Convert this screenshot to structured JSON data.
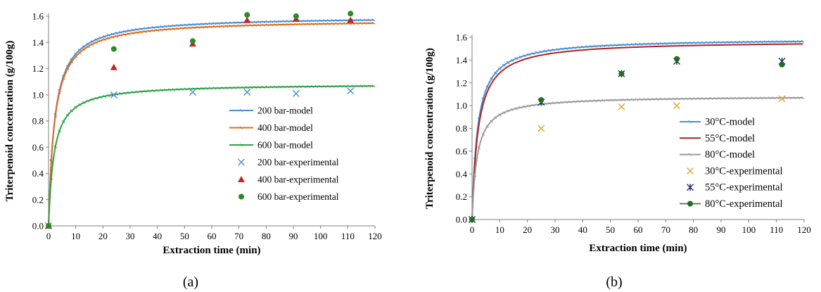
{
  "chart_data": [
    {
      "type": "line",
      "panel_label": "(a)",
      "xlabel": "Extraction time (min)",
      "ylabel": "Triterpenoid concentration (g/100g)",
      "xlim": [
        0,
        120
      ],
      "ylim": [
        0,
        1.6
      ],
      "x_ticks": [
        "0",
        "10",
        "20",
        "30",
        "40",
        "50",
        "60",
        "70",
        "80",
        "90",
        "100",
        "110",
        "120"
      ],
      "y_ticks": [
        "0.0",
        "0.2",
        "0.4",
        "0.6",
        "0.8",
        "1.0",
        "1.2",
        "1.4",
        "1.6"
      ],
      "grid": false,
      "legend_position": "bottom-right",
      "series": [
        {
          "name": "200 bar-model",
          "kind": "model",
          "color": "#4a8ed6",
          "marker": "tick",
          "asymptote": 1.6,
          "half_time": 2.2
        },
        {
          "name": "400 bar-model",
          "kind": "model",
          "color": "#e06c1e",
          "marker": "tick",
          "asymptote": 1.575,
          "half_time": 2.2
        },
        {
          "name": "600 bar-model",
          "kind": "model",
          "color": "#2ea043",
          "marker": "tick",
          "asymptote": 1.085,
          "half_time": 2.0
        },
        {
          "name": "200 bar-experimental",
          "kind": "experimental",
          "color": "#3f8fd0",
          "marker": "x",
          "points": [
            [
              0,
              0.0
            ],
            [
              24,
              1.0
            ],
            [
              53,
              1.02
            ],
            [
              73,
              1.02
            ],
            [
              91,
              1.01
            ],
            [
              111,
              1.03
            ]
          ]
        },
        {
          "name": "400 bar-experimental",
          "kind": "experimental",
          "color": "#c0281e",
          "marker": "triangle",
          "points": [
            [
              0,
              0.0
            ],
            [
              24,
              1.21
            ],
            [
              53,
              1.39
            ],
            [
              73,
              1.57
            ],
            [
              91,
              1.58
            ],
            [
              111,
              1.57
            ]
          ]
        },
        {
          "name": "600 bar-experimental",
          "kind": "experimental",
          "color": "#2a8a2a",
          "marker": "circle",
          "points": [
            [
              0,
              0.0
            ],
            [
              24,
              1.35
            ],
            [
              53,
              1.41
            ],
            [
              73,
              1.61
            ],
            [
              91,
              1.6
            ],
            [
              111,
              1.62
            ]
          ]
        }
      ]
    },
    {
      "type": "line",
      "panel_label": "(b)",
      "xlabel": "Extraction time (min)",
      "ylabel": "Triterpenoid concentration (g/100g)",
      "xlim": [
        0,
        120
      ],
      "ylim": [
        0,
        1.6
      ],
      "x_ticks": [
        "0",
        "10",
        "20",
        "30",
        "40",
        "50",
        "60",
        "70",
        "80",
        "90",
        "100",
        "110",
        "120"
      ],
      "y_ticks": [
        "0.0",
        "0.2",
        "0.4",
        "0.6",
        "0.8",
        "1.0",
        "1.2",
        "1.4",
        "1.6"
      ],
      "grid": false,
      "legend_position": "bottom-right",
      "series": [
        {
          "name": "30°C-model",
          "kind": "model",
          "color": "#4a8ed6",
          "marker": "tick",
          "asymptote": 1.59,
          "half_time": 2.0
        },
        {
          "name": "55°C-model",
          "kind": "model",
          "color": "#b31f1f",
          "marker": "none",
          "asymptote": 1.57,
          "half_time": 2.2
        },
        {
          "name": "80°C-model",
          "kind": "model",
          "color": "#9a9a9a",
          "marker": "tick",
          "asymptote": 1.085,
          "half_time": 1.8
        },
        {
          "name": "30°C-experimental",
          "kind": "experimental",
          "color": "#e0a030",
          "marker": "x",
          "points": [
            [
              0,
              0.0
            ],
            [
              25,
              0.8
            ],
            [
              54,
              0.99
            ],
            [
              74,
              1.0
            ],
            [
              112,
              1.06
            ]
          ]
        },
        {
          "name": "55°C-experimental",
          "kind": "experimental",
          "color": "#1b2a6b",
          "marker": "asterisk",
          "points": [
            [
              0,
              0.0
            ],
            [
              25,
              1.03
            ],
            [
              54,
              1.28
            ],
            [
              74,
              1.39
            ],
            [
              112,
              1.39
            ]
          ]
        },
        {
          "name": "80°C-experimental",
          "kind": "experimental",
          "color": "#1e6e1e",
          "marker": "circle",
          "points": [
            [
              0,
              0.0
            ],
            [
              25,
              1.05
            ],
            [
              54,
              1.28
            ],
            [
              74,
              1.41
            ],
            [
              112,
              1.36
            ]
          ]
        }
      ]
    }
  ]
}
